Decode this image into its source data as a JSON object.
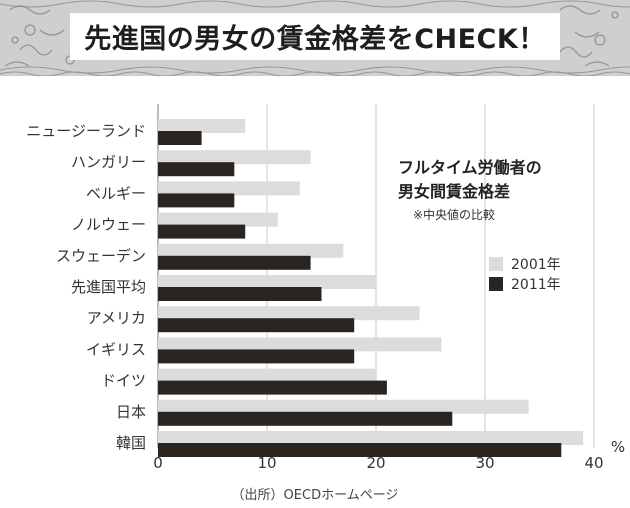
{
  "banner": {
    "title": "先進国の男女の賃金格差をCHECK！"
  },
  "chart_data": {
    "type": "bar",
    "orientation": "horizontal",
    "title": "フルタイム労働者の男女間賃金格差",
    "subtitle": "※中央値の比較",
    "unit": "%",
    "categories": [
      "ニュージーランド",
      "ハンガリー",
      "ベルギー",
      "ノルウェー",
      "スウェーデン",
      "先進国平均",
      "アメリカ",
      "イギリス",
      "ドイツ",
      "日本",
      "韓国"
    ],
    "series": [
      {
        "name": "2001年",
        "color": "#dcdcdc",
        "values": [
          8,
          14,
          13,
          11,
          17,
          20,
          24,
          26,
          20,
          34,
          39
        ]
      },
      {
        "name": "2011年",
        "color": "#2b2522",
        "values": [
          4,
          7,
          7,
          8,
          14,
          15,
          18,
          18,
          21,
          27,
          37
        ]
      }
    ],
    "xlim": [
      0,
      40
    ],
    "xticks": [
      0,
      10,
      20,
      30,
      40
    ],
    "grid": true,
    "legend": "right"
  },
  "legend": {
    "title_line1": "フルタイム労働者の",
    "title_line2": "男女間賃金格差",
    "note": "※中央値の比較",
    "items": [
      {
        "label": "2001年",
        "color": "#dcdcdc"
      },
      {
        "label": "2011年",
        "color": "#2b2522"
      }
    ]
  },
  "source": "（出所）OECDホームページ"
}
